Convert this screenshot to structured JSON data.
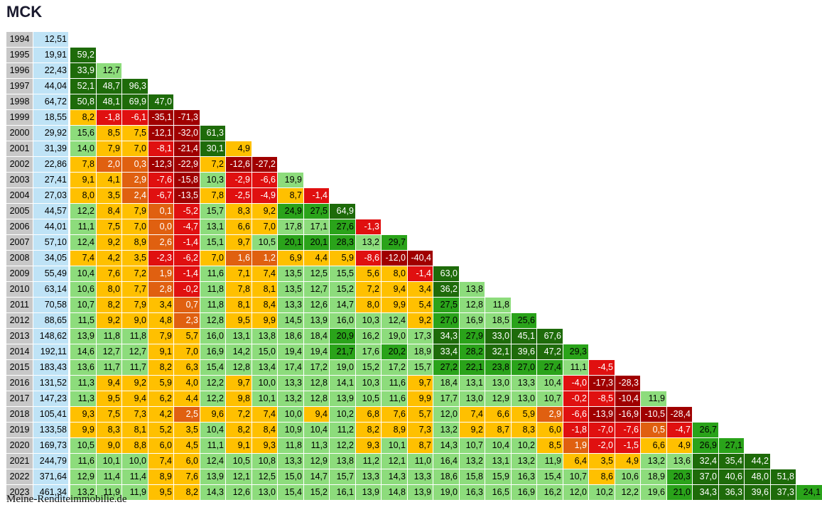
{
  "title": "MCK",
  "footer": "Meine-Renditeimmobilie.de",
  "colors": {
    "year_bg": "#c8c8c8",
    "price_bg": "#bfe3f6",
    "darkgreen": "#1e6b0a",
    "green": "#2aa31a",
    "lightgreen": "#8ddc7c",
    "yellow": "#ffc000",
    "orange": "#e06010",
    "red": "#e01010",
    "darkred": "#a00000"
  },
  "chart_data": {
    "type": "table",
    "title": "MCK",
    "years": [
      "1994",
      "1995",
      "1996",
      "1997",
      "1998",
      "1999",
      "2000",
      "2001",
      "2002",
      "2003",
      "2004",
      "2005",
      "2006",
      "2007",
      "2008",
      "2009",
      "2010",
      "2011",
      "2012",
      "2013",
      "2014",
      "2015",
      "2016",
      "2017",
      "2018",
      "2019",
      "2020",
      "2021",
      "2022",
      "2023"
    ],
    "prices": [
      "12,51",
      "19,91",
      "22,43",
      "44,04",
      "64,72",
      "18,55",
      "29,92",
      "31,39",
      "22,86",
      "27,41",
      "27,03",
      "44,57",
      "44,01",
      "57,10",
      "34,05",
      "55,49",
      "63,14",
      "70,58",
      "88,65",
      "148,62",
      "192,11",
      "183,43",
      "131,52",
      "147,23",
      "105,41",
      "133,58",
      "169,73",
      "244,79",
      "371,64",
      "461,34"
    ],
    "returns": [
      [],
      [
        59.2
      ],
      [
        33.9,
        12.7
      ],
      [
        52.1,
        48.7,
        96.3
      ],
      [
        50.8,
        48.1,
        69.9,
        47.0
      ],
      [
        8.2,
        -1.8,
        -6.1,
        -35.1,
        -71.3
      ],
      [
        15.6,
        8.5,
        7.5,
        -12.1,
        -32.0,
        61.3
      ],
      [
        14.0,
        7.9,
        7.0,
        -8.1,
        -21.4,
        30.1,
        4.9
      ],
      [
        7.8,
        2.0,
        0.3,
        -12.3,
        -22.9,
        7.2,
        -12.6,
        -27.2
      ],
      [
        9.1,
        4.1,
        2.9,
        -7.6,
        -15.8,
        10.3,
        -2.9,
        -6.6,
        19.9
      ],
      [
        8.0,
        3.5,
        2.4,
        -6.7,
        -13.5,
        7.8,
        -2.5,
        -4.9,
        8.7,
        -1.4
      ],
      [
        12.2,
        8.4,
        7.9,
        0.1,
        -5.2,
        15.7,
        8.3,
        9.2,
        24.9,
        27.5,
        64.9
      ],
      [
        11.1,
        7.5,
        7.0,
        0.0,
        -4.7,
        13.1,
        6.6,
        7.0,
        17.8,
        17.1,
        27.6,
        -1.3
      ],
      [
        12.4,
        9.2,
        8.9,
        2.6,
        -1.4,
        15.1,
        9.7,
        10.5,
        20.1,
        20.1,
        28.3,
        13.2,
        29.7
      ],
      [
        7.4,
        4.2,
        3.5,
        -2.3,
        -6.2,
        7.0,
        1.6,
        1.2,
        6.9,
        4.4,
        5.9,
        -8.6,
        -12.0,
        -40.4
      ],
      [
        10.4,
        7.6,
        7.2,
        1.9,
        -1.4,
        11.6,
        7.1,
        7.4,
        13.5,
        12.5,
        15.5,
        5.6,
        8.0,
        -1.4,
        63.0
      ],
      [
        10.6,
        8.0,
        7.7,
        2.8,
        -0.2,
        11.8,
        7.8,
        8.1,
        13.5,
        12.7,
        15.2,
        7.2,
        9.4,
        3.4,
        36.2,
        13.8
      ],
      [
        10.7,
        8.2,
        7.9,
        3.4,
        0.7,
        11.8,
        8.1,
        8.4,
        13.3,
        12.6,
        14.7,
        8.0,
        9.9,
        5.4,
        27.5,
        12.8,
        11.8
      ],
      [
        11.5,
        9.2,
        9.0,
        4.8,
        2.3,
        12.8,
        9.5,
        9.9,
        14.5,
        13.9,
        16.0,
        10.3,
        12.4,
        9.2,
        27.0,
        16.9,
        18.5,
        25.6
      ],
      [
        13.9,
        11.8,
        11.8,
        7.9,
        5.7,
        16.0,
        13.1,
        13.8,
        18.6,
        18.4,
        20.9,
        16.2,
        19.0,
        17.3,
        34.3,
        27.9,
        33.0,
        45.1,
        67.6
      ],
      [
        14.6,
        12.7,
        12.7,
        9.1,
        7.0,
        16.9,
        14.2,
        15.0,
        19.4,
        19.4,
        21.7,
        17.6,
        20.2,
        18.9,
        33.4,
        28.2,
        32.1,
        39.6,
        47.2,
        29.3
      ],
      [
        13.6,
        11.7,
        11.7,
        8.2,
        6.3,
        15.4,
        12.8,
        13.4,
        17.4,
        17.2,
        19.0,
        15.2,
        17.2,
        15.7,
        27.2,
        22.1,
        23.8,
        27.0,
        27.4,
        11.1,
        -4.5
      ],
      [
        11.3,
        9.4,
        9.2,
        5.9,
        4.0,
        12.2,
        9.7,
        10.0,
        13.3,
        12.8,
        14.1,
        10.3,
        11.6,
        9.7,
        18.4,
        13.1,
        13.0,
        13.3,
        10.4,
        -4.0,
        -17.3,
        -28.3
      ],
      [
        11.3,
        9.5,
        9.4,
        6.2,
        4.4,
        12.2,
        9.8,
        10.1,
        13.2,
        12.8,
        13.9,
        10.5,
        11.6,
        9.9,
        17.7,
        13.0,
        12.9,
        13.0,
        10.7,
        -0.2,
        -8.5,
        -10.4,
        11.9
      ],
      [
        9.3,
        7.5,
        7.3,
        4.2,
        2.5,
        9.6,
        7.2,
        7.4,
        10.0,
        9.4,
        10.2,
        6.8,
        7.6,
        5.7,
        12.0,
        7.4,
        6.6,
        5.9,
        2.9,
        -6.6,
        -13.9,
        -16.9,
        -10.5,
        -28.4
      ],
      [
        9.9,
        8.3,
        8.1,
        5.2,
        3.5,
        10.4,
        8.2,
        8.4,
        10.9,
        10.4,
        11.2,
        8.2,
        8.9,
        7.3,
        13.2,
        9.2,
        8.7,
        8.3,
        6.0,
        -1.8,
        -7.0,
        -7.6,
        0.5,
        -4.7,
        26.7
      ],
      [
        10.5,
        9.0,
        8.8,
        6.0,
        4.5,
        11.1,
        9.1,
        9.3,
        11.8,
        11.3,
        12.2,
        9.3,
        10.1,
        8.7,
        14.3,
        10.7,
        10.4,
        10.2,
        8.5,
        1.9,
        -2.0,
        -1.5,
        6.6,
        4.9,
        26.9,
        27.1
      ],
      [
        11.6,
        10.1,
        10.0,
        7.4,
        6.0,
        12.4,
        10.5,
        10.8,
        13.3,
        12.9,
        13.8,
        11.2,
        12.1,
        11.0,
        16.4,
        13.2,
        13.1,
        13.2,
        11.9,
        6.4,
        3.5,
        4.9,
        13.2,
        13.6,
        32.4,
        35.4,
        44.2
      ],
      [
        12.9,
        11.4,
        11.4,
        8.9,
        7.6,
        13.9,
        12.1,
        12.5,
        15.0,
        14.7,
        15.7,
        13.3,
        14.3,
        13.3,
        18.6,
        15.8,
        15.9,
        16.3,
        15.4,
        10.7,
        8.6,
        10.6,
        18.9,
        20.3,
        37.0,
        40.6,
        48.0,
        51.8
      ],
      [
        13.2,
        11.9,
        11.9,
        9.5,
        8.2,
        14.3,
        12.6,
        13.0,
        15.4,
        15.2,
        16.1,
        13.9,
        14.8,
        13.9,
        19.0,
        16.3,
        16.5,
        16.9,
        16.2,
        12.0,
        10.2,
        12.2,
        19.6,
        21.0,
        34.3,
        36.3,
        39.6,
        37.3,
        24.1
      ]
    ]
  }
}
